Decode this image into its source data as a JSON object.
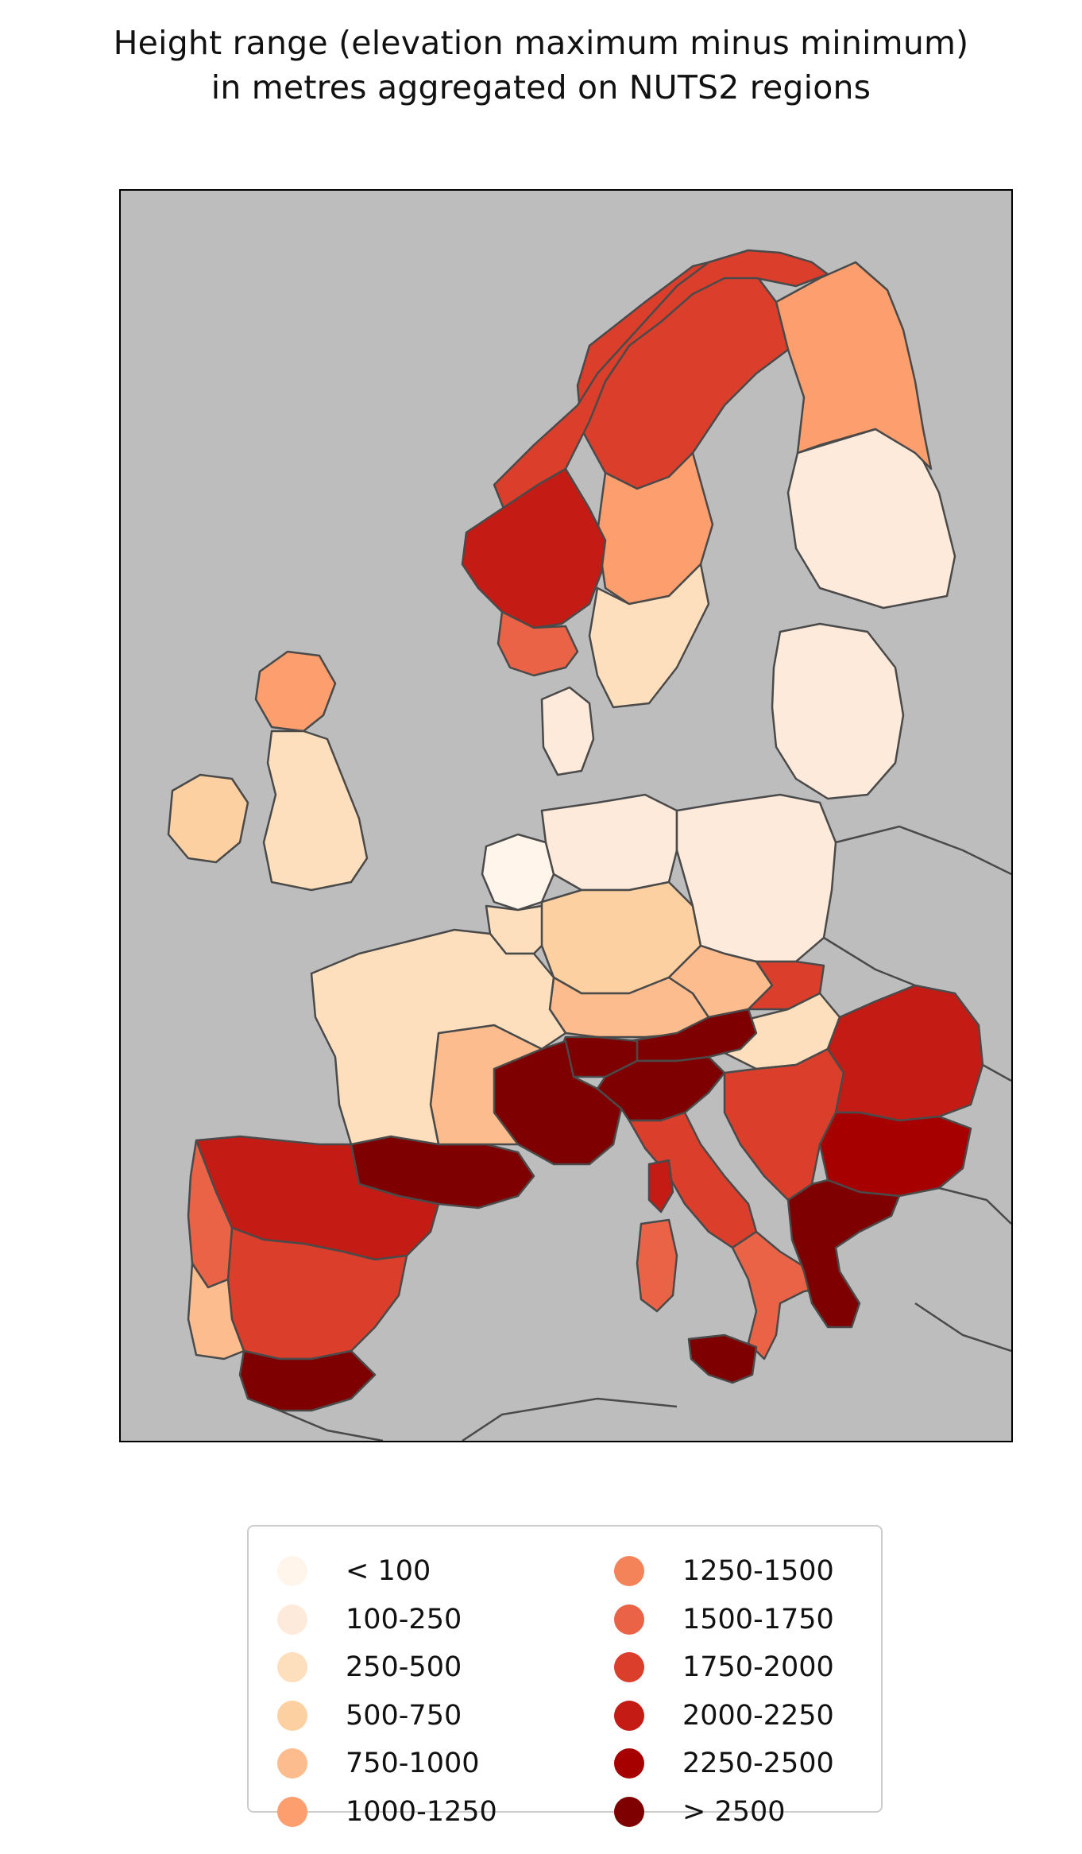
{
  "title": {
    "line1": "Height range (elevation maximum minus minimum)",
    "line2": "in metres aggregated on NUTS2 regions"
  },
  "map": {
    "background_color": "#bdbdbd",
    "border_color": "#4a4a4a",
    "regions": [
      {
        "name": "Finland south",
        "class": "100-250"
      },
      {
        "name": "Finland north",
        "class": "1000-1250"
      },
      {
        "name": "Sweden north",
        "class": "1750-2000"
      },
      {
        "name": "Sweden central",
        "class": "1000-1250"
      },
      {
        "name": "Sweden south",
        "class": "250-500"
      },
      {
        "name": "Norway north",
        "class": "1750-2000"
      },
      {
        "name": "Norway west",
        "class": "2000-2250"
      },
      {
        "name": "Norway south",
        "class": "1500-1750"
      },
      {
        "name": "Denmark",
        "class": "100-250"
      },
      {
        "name": "Baltic states",
        "class": "100-250"
      },
      {
        "name": "Netherlands",
        "class": "< 100"
      },
      {
        "name": "Belgium",
        "class": "250-500"
      },
      {
        "name": "Germany north",
        "class": "100-250"
      },
      {
        "name": "Germany central",
        "class": "500-750"
      },
      {
        "name": "Germany south",
        "class": "750-1000"
      },
      {
        "name": "Poland",
        "class": "100-250"
      },
      {
        "name": "Czechia",
        "class": "750-1000"
      },
      {
        "name": "Slovakia",
        "class": "1750-2000"
      },
      {
        "name": "Hungary",
        "class": "250-500"
      },
      {
        "name": "Austria",
        "class": "> 2500"
      },
      {
        "name": "Switzerland",
        "class": "> 2500"
      },
      {
        "name": "Alps France",
        "class": "> 2500"
      },
      {
        "name": "Pyrenees",
        "class": "> 2500"
      },
      {
        "name": "France central",
        "class": "750-1000"
      },
      {
        "name": "France north",
        "class": "250-500"
      },
      {
        "name": "Italy north",
        "class": "> 2500"
      },
      {
        "name": "Italy central",
        "class": "1750-2000"
      },
      {
        "name": "Italy south",
        "class": "1500-1750"
      },
      {
        "name": "Sicily",
        "class": "> 2500"
      },
      {
        "name": "Sardinia",
        "class": "1500-1750"
      },
      {
        "name": "Corsica",
        "class": "2000-2250"
      },
      {
        "name": "Spain north",
        "class": "2000-2250"
      },
      {
        "name": "Spain central",
        "class": "1750-2000"
      },
      {
        "name": "Spain south",
        "class": "> 2500"
      },
      {
        "name": "Portugal north",
        "class": "1500-1750"
      },
      {
        "name": "Portugal south",
        "class": "750-1000"
      },
      {
        "name": "Balkans",
        "class": "1750-2000"
      },
      {
        "name": "Romania",
        "class": "2000-2250"
      },
      {
        "name": "Bulgaria",
        "class": "2250-2500"
      },
      {
        "name": "Greece",
        "class": "> 2500"
      },
      {
        "name": "Ireland",
        "class": "500-750"
      },
      {
        "name": "Scotland",
        "class": "1000-1250"
      },
      {
        "name": "England",
        "class": "250-500"
      }
    ]
  },
  "legend": {
    "items": [
      {
        "label": "< 100",
        "color": "#fff5eb"
      },
      {
        "label": "100-250",
        "color": "#feeadb"
      },
      {
        "label": "250-500",
        "color": "#fddfbe"
      },
      {
        "label": "500-750",
        "color": "#fdd0a2"
      },
      {
        "label": "750-1000",
        "color": "#fcbc8e"
      },
      {
        "label": "1000-1250",
        "color": "#fc9e6e"
      },
      {
        "label": "1250-1500",
        "color": "#f5835a"
      },
      {
        "label": "1500-1750",
        "color": "#eb6346"
      },
      {
        "label": "1750-2000",
        "color": "#db3e2b"
      },
      {
        "label": "2000-2250",
        "color": "#c51b15"
      },
      {
        "label": "2250-2500",
        "color": "#a70000"
      },
      {
        "label": "> 2500",
        "color": "#7f0000"
      }
    ]
  }
}
